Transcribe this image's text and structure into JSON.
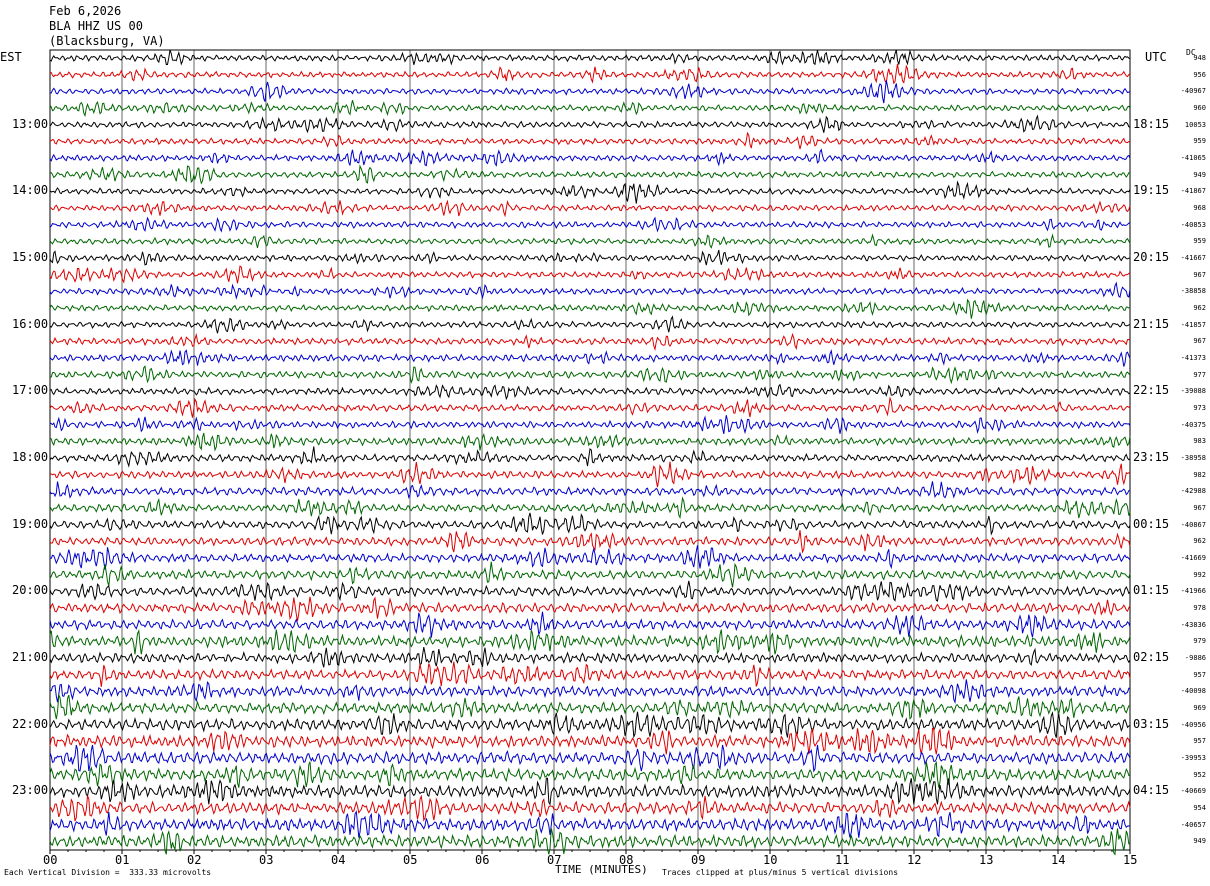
{
  "header": {
    "date": "Feb 6,2026",
    "station": "BLA HHZ US 00",
    "location": "(Blacksburg, VA)"
  },
  "corner": {
    "left": "EST",
    "right": "UTC",
    "dc": "DC"
  },
  "footer": {
    "scale_note": "Each Vertical Division =  333.33 microvolts",
    "xlabel": "TIME (MINUTES)",
    "clip_note": "Traces clipped at plus/minus 5 vertical divisions"
  },
  "colors": {
    "cycle": [
      "#000000",
      "#dd0000",
      "#0000cc",
      "#006600"
    ],
    "grid": "#000000"
  },
  "chart_data": {
    "type": "line",
    "xlabel": "TIME (MINUTES)",
    "xlim": [
      0,
      15
    ],
    "x_ticks": [
      "00",
      "01",
      "02",
      "03",
      "04",
      "05",
      "06",
      "07",
      "08",
      "09",
      "10",
      "11",
      "12",
      "13",
      "14",
      "15"
    ],
    "traces_per_hour": 4,
    "rows": 48,
    "left_hour_labels": [
      "13:00",
      "14:00",
      "15:00",
      "16:00",
      "17:00",
      "18:00",
      "19:00",
      "20:00",
      "21:00",
      "22:00",
      "23:00"
    ],
    "right_hour_labels": [
      "18:15",
      "19:15",
      "20:15",
      "21:15",
      "22:15",
      "23:15",
      "00:15",
      "01:15",
      "02:15",
      "03:15",
      "04:15"
    ],
    "dc_offsets": [
      "948",
      "956",
      "-40967",
      "960",
      "10053",
      "959",
      "-41065",
      "949",
      "-41867",
      "968",
      "-40853",
      "959",
      "-41667",
      "967",
      "-38858",
      "962",
      "-41857",
      "967",
      "-41373",
      "977",
      "-39088",
      "973",
      "-40375",
      "983",
      "-38958",
      "982",
      "-42988",
      "967",
      "-40867",
      "962",
      "-41669",
      "992",
      "-41966",
      "978",
      "-43836",
      "979",
      "-9886",
      "957",
      "-40098",
      "969",
      "-40956",
      "957",
      "-39953",
      "952",
      "-40669",
      "954",
      "-40657",
      "949"
    ],
    "amplitude_divisions": [
      1.0,
      1.0,
      1.0,
      1.0,
      1.0,
      1.0,
      1.0,
      1.0,
      1.0,
      1.0,
      1.0,
      1.0,
      1.0,
      1.0,
      1.0,
      1.0,
      1.0,
      1.1,
      1.1,
      1.1,
      1.1,
      1.1,
      1.1,
      1.2,
      1.2,
      1.2,
      1.3,
      1.3,
      1.3,
      1.4,
      1.4,
      1.5,
      1.5,
      1.6,
      1.6,
      1.8,
      1.6,
      1.6,
      1.7,
      1.8,
      1.9,
      2.0,
      2.0,
      2.0,
      2.0,
      1.9,
      2.0,
      2.0
    ]
  }
}
